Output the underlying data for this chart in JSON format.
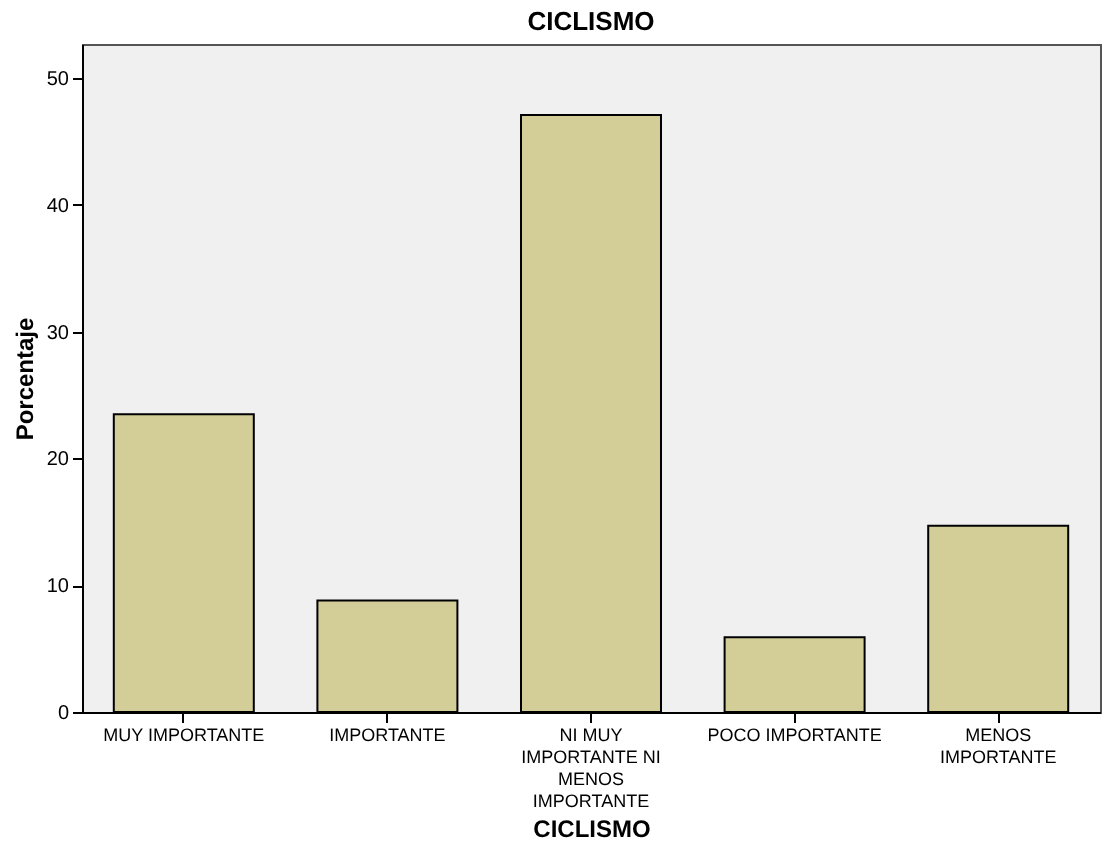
{
  "chart_data": {
    "type": "bar",
    "title": "CICLISMO",
    "xlabel": "CICLISMO",
    "ylabel": "Porcentaje",
    "categories": [
      "MUY IMPORTANTE",
      "IMPORTANTE",
      "NI MUY IMPORTANTE NI MENOS IMPORTANTE",
      "POCO IMPORTANTE",
      "MENOS IMPORTANTE"
    ],
    "values": [
      23.5,
      8.8,
      47.1,
      5.9,
      14.7
    ],
    "color": "#d3ce97",
    "ylim": [
      0,
      52.7
    ],
    "yticks": [
      0,
      10,
      20,
      30,
      40,
      50
    ],
    "grid": false
  }
}
